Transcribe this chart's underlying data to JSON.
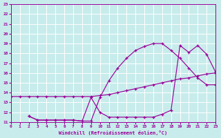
{
  "xlabel": "Windchill (Refroidissement éolien,°C)",
  "bg_color": "#c8ecec",
  "grid_color": "#ffffff",
  "line_color": "#990099",
  "xlim": [
    0,
    23
  ],
  "ylim": [
    11,
    23
  ],
  "xticks": [
    0,
    1,
    2,
    3,
    4,
    5,
    6,
    7,
    8,
    9,
    10,
    11,
    12,
    13,
    14,
    15,
    16,
    17,
    18,
    19,
    20,
    21,
    22,
    23
  ],
  "yticks": [
    11,
    12,
    13,
    14,
    15,
    16,
    17,
    18,
    19,
    20,
    21,
    22,
    23
  ],
  "curve1_x": [
    0,
    1,
    2,
    3,
    4,
    5,
    6,
    7,
    8,
    9,
    10,
    11,
    12,
    13,
    14,
    15,
    16,
    17,
    18,
    19,
    20,
    21,
    22,
    23
  ],
  "curve1_y": [
    13.6,
    13.6,
    13.6,
    13.6,
    13.6,
    13.6,
    13.6,
    13.6,
    13.6,
    13.6,
    13.7,
    13.8,
    14.0,
    14.2,
    14.4,
    14.6,
    14.8,
    15.0,
    15.2,
    15.4,
    15.5,
    15.7,
    15.9,
    16.0
  ],
  "curve2_x": [
    2,
    3,
    4,
    5,
    6,
    7,
    8,
    9,
    10,
    11,
    12,
    13,
    14,
    15,
    16,
    17,
    18,
    19,
    20,
    21,
    22,
    23
  ],
  "curve2_y": [
    11.6,
    11.2,
    11.2,
    11.2,
    11.2,
    11.2,
    11.1,
    11.1,
    13.5,
    15.2,
    16.5,
    17.5,
    18.3,
    18.7,
    19.0,
    19.0,
    18.3,
    17.5,
    16.5,
    15.5,
    14.8,
    14.8
  ],
  "curve3_x": [
    2,
    3,
    4,
    5,
    6,
    7,
    8,
    9,
    10,
    11,
    12,
    13,
    14,
    15,
    16,
    17,
    18,
    19,
    20,
    21,
    22,
    23
  ],
  "curve3_y": [
    11.6,
    11.2,
    11.2,
    11.2,
    11.2,
    11.2,
    11.1,
    13.5,
    12.0,
    11.5,
    11.5,
    11.5,
    11.5,
    11.5,
    11.5,
    11.8,
    12.2,
    18.8,
    18.1,
    18.8,
    17.9,
    16.1
  ]
}
